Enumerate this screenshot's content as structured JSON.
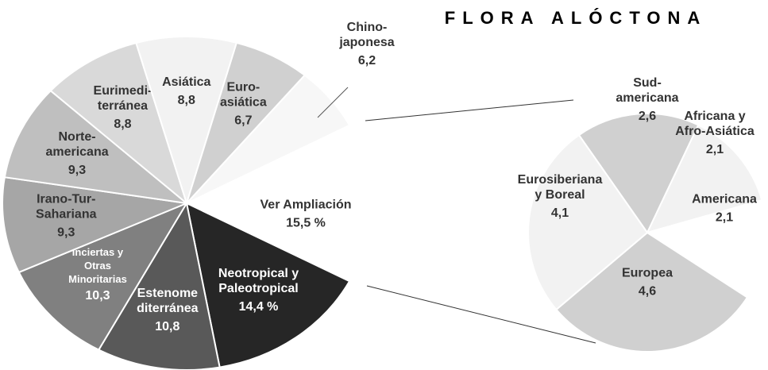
{
  "chart_data": {
    "type": "pie-of-pie",
    "title": "FLORA ALÓCTONA",
    "categories": [
      "Chino-\njaponesa",
      "Ver Ampliación",
      "Neotropical y\nPaleotropical",
      "Estenome\nditerránea",
      "Inciertas y\nOtras\nMinoritarias",
      "Irano-Tur-\nSahariana",
      "Norte-\namericana",
      "Eurimedi-\nterránea",
      "Asiática",
      "Euro-\nasiática"
    ],
    "values": [
      6.2,
      15.5,
      14.4,
      10.8,
      10.3,
      9.3,
      9.3,
      8.8,
      8.8,
      6.7
    ],
    "value_labels": [
      "6,2",
      "15,5 %",
      "14,4 %",
      "10,8",
      "10,3",
      "9,3",
      "9,3",
      "8,8",
      "8,8",
      "6,7"
    ],
    "colors": [
      "#f7f7f7",
      "#ffffff",
      "#262626",
      "#595959",
      "#808080",
      "#a6a6a6",
      "#bfbfbf",
      "#d9d9d9",
      "#f2f2f2",
      "#d0d0d0"
    ],
    "detail": {
      "categories": [
        "Sud-\namericana",
        "Africana y\nAfro-Asiática",
        "Americana",
        "Europea",
        "Eurosiberiana\ny Boreal"
      ],
      "values": [
        2.6,
        2.1,
        2.1,
        4.6,
        4.1
      ],
      "value_labels": [
        "2,6",
        "2,1",
        "2,1",
        "4,6",
        "4,1"
      ],
      "colors": [
        "#d0d0d0",
        "#f2f2f2",
        "#ffffff",
        "#d0d0d0",
        "#f2f2f2"
      ]
    }
  }
}
